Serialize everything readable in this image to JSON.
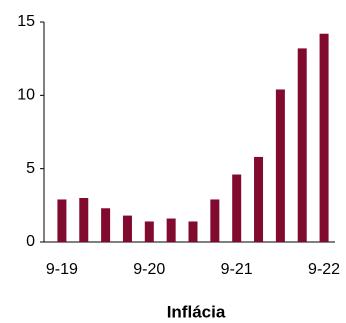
{
  "chart_data": {
    "type": "bar",
    "x_label": "Inflácia",
    "categories": [
      "9-19",
      null,
      null,
      null,
      "9-20",
      null,
      null,
      null,
      "9-21",
      null,
      null,
      null,
      "9-22"
    ],
    "values": [
      2.9,
      3.0,
      2.3,
      1.8,
      1.4,
      1.6,
      1.4,
      2.9,
      4.6,
      5.8,
      10.4,
      13.2,
      14.2
    ],
    "color": "#800b2e",
    "ylim": [
      0,
      15
    ],
    "yticks": [
      0,
      5,
      10,
      15
    ],
    "grid": false
  }
}
